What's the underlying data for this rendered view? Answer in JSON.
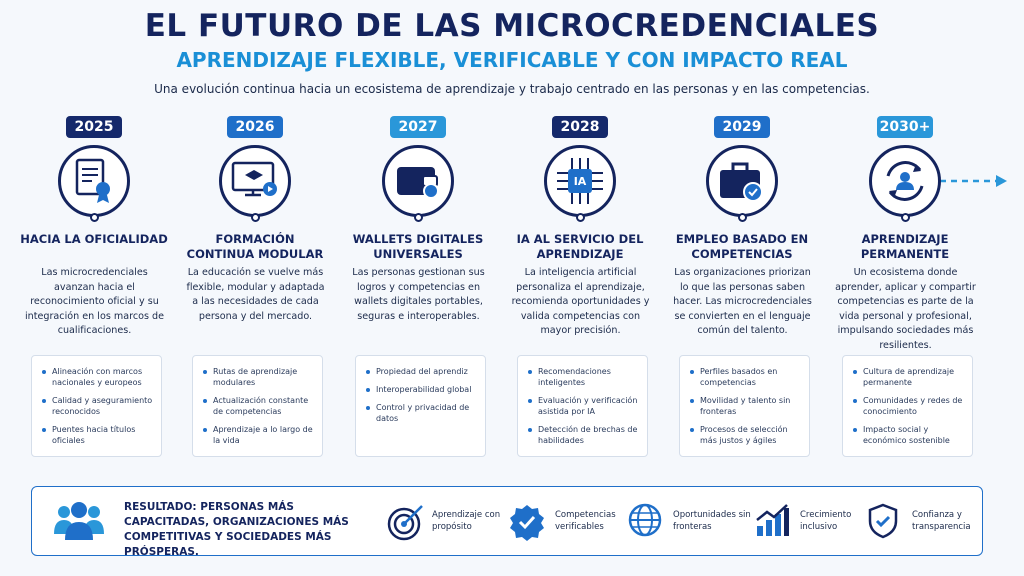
{
  "header": {
    "title": "EL FUTURO DE LAS MICROCREDENCIALES",
    "subtitle": "APRENDIZAJE FLEXIBLE, VERIFICABLE Y CON IMPACTO REAL",
    "tagline": "Una evolución continua hacia un ecosistema de aprendizaje y trabajo centrado en las personas y en las competencias."
  },
  "timeline": [
    {
      "year": "2025",
      "heading": "HACIA LA OFICIALIDAD",
      "description": "Las microcredenciales avanzan hacia el reconocimiento oficial y su integración en los marcos de cualificaciones.",
      "bullets": [
        "Alineación con marcos nacionales y europeos",
        "Calidad y aseguramiento reconocidos",
        "Puentes hacia títulos oficiales"
      ]
    },
    {
      "year": "2026",
      "heading": "FORMACIÓN CONTINUA MODULAR",
      "description": "La educación se vuelve más flexible, modular y adaptada a las necesidades de cada persona y del mercado.",
      "bullets": [
        "Rutas de aprendizaje modulares",
        "Actualización constante de competencias",
        "Aprendizaje a lo largo de la vida"
      ]
    },
    {
      "year": "2027",
      "heading": "WALLETS DIGITALES UNIVERSALES",
      "description": "Las personas gestionan sus logros y competencias en wallets digitales portables, seguras e interoperables.",
      "bullets": [
        "Propiedad del aprendiz",
        "Interoperabilidad global",
        "Control y privacidad de datos"
      ]
    },
    {
      "year": "2028",
      "icon_label": "IA",
      "heading": "IA AL SERVICIO DEL APRENDIZAJE",
      "description": "La inteligencia artificial personaliza el aprendizaje, recomienda oportunidades y valida competencias con mayor precisión.",
      "bullets": [
        "Recomendaciones inteligentes",
        "Evaluación y verificación asistida por IA",
        "Detección de brechas de habilidades"
      ]
    },
    {
      "year": "2029",
      "heading": "EMPLEO BASADO EN COMPETENCIAS",
      "description": "Las organizaciones priorizan lo que las personas saben hacer. Las microcredenciales se convierten en el lenguaje común del talento.",
      "bullets": [
        "Perfiles basados en competencias",
        "Movilidad y talento sin fronteras",
        "Procesos de selección más justos y ágiles"
      ]
    },
    {
      "year": "2030+",
      "heading": "APRENDIZAJE PERMANENTE",
      "description": "Un ecosistema donde aprender, aplicar y compartir competencias es parte de la vida personal y profesional, impulsando sociedades más resilientes.",
      "bullets": [
        "Cultura de aprendizaje permanente",
        "Comunidades y redes de conocimiento",
        "Impacto social y económico sostenible"
      ]
    }
  ],
  "result": {
    "text": "RESULTADO: PERSONAS MÁS CAPACITADAS, ORGANIZACIONES MÁS COMPETITIVAS Y SOCIEDADES MÁS PRÓSPERAS.",
    "benefits": [
      "Aprendizaje con propósito",
      "Competencias verificables",
      "Oportunidades sin fronteras",
      "Crecimiento inclusivo",
      "Confianza y transparencia"
    ]
  }
}
